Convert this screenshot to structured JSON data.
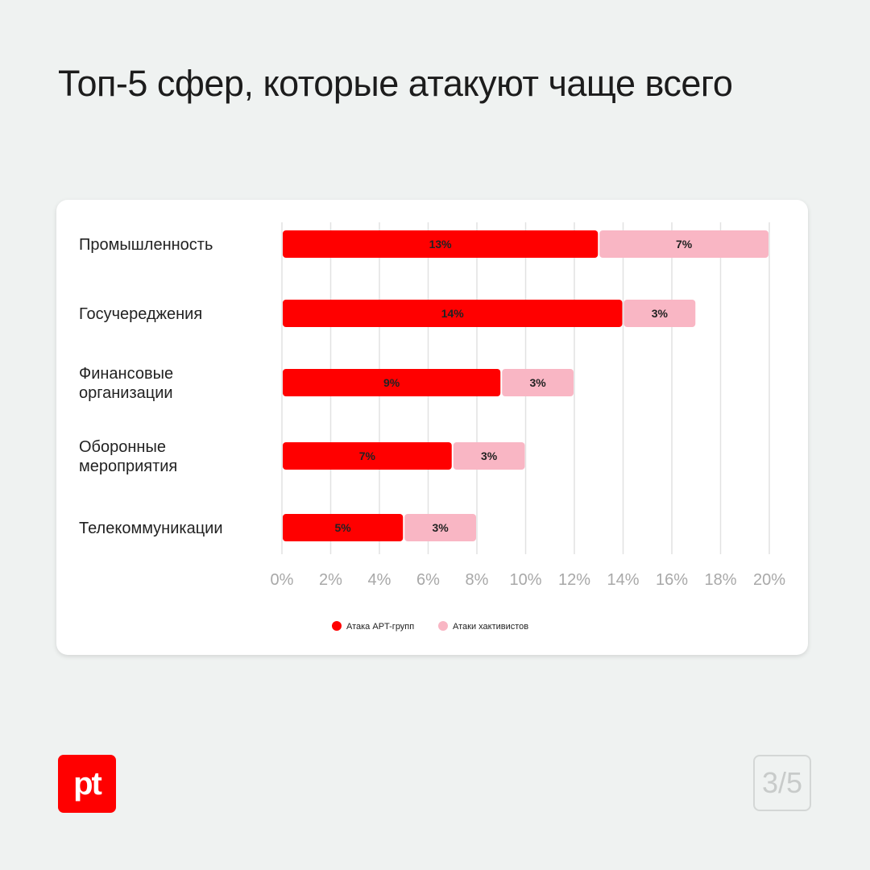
{
  "title": "Топ-5 сфер, которые атакуют чаще всего",
  "page_indicator": "3/5",
  "logo_text": "pt",
  "chart_data": {
    "type": "bar",
    "orientation": "horizontal",
    "stacked": true,
    "categories": [
      [
        "Промышленность"
      ],
      [
        "Госучереджения"
      ],
      [
        "Финансовые",
        "организации"
      ],
      [
        "Оборонные",
        "мероприятия"
      ],
      [
        "Телекоммуникации"
      ]
    ],
    "series": [
      {
        "name": "Атака APT-групп",
        "color": "#ff0000",
        "values": [
          13,
          14,
          9,
          7,
          5
        ]
      },
      {
        "name": "Атаки хактивистов",
        "color": "#f9b6c4",
        "values": [
          7,
          3,
          3,
          3,
          3
        ]
      }
    ],
    "value_labels": [
      [
        "13%",
        "14%",
        "9%",
        "7%",
        "5%"
      ],
      [
        "7%",
        "3%",
        "3%",
        "3%",
        "3%"
      ]
    ],
    "xlim": [
      0,
      20
    ],
    "xticks": [
      "0%",
      "2%",
      "4%",
      "6%",
      "8%",
      "10%",
      "12%",
      "14%",
      "16%",
      "18%",
      "20%"
    ],
    "grid": "vertical",
    "legend": "bottom"
  }
}
